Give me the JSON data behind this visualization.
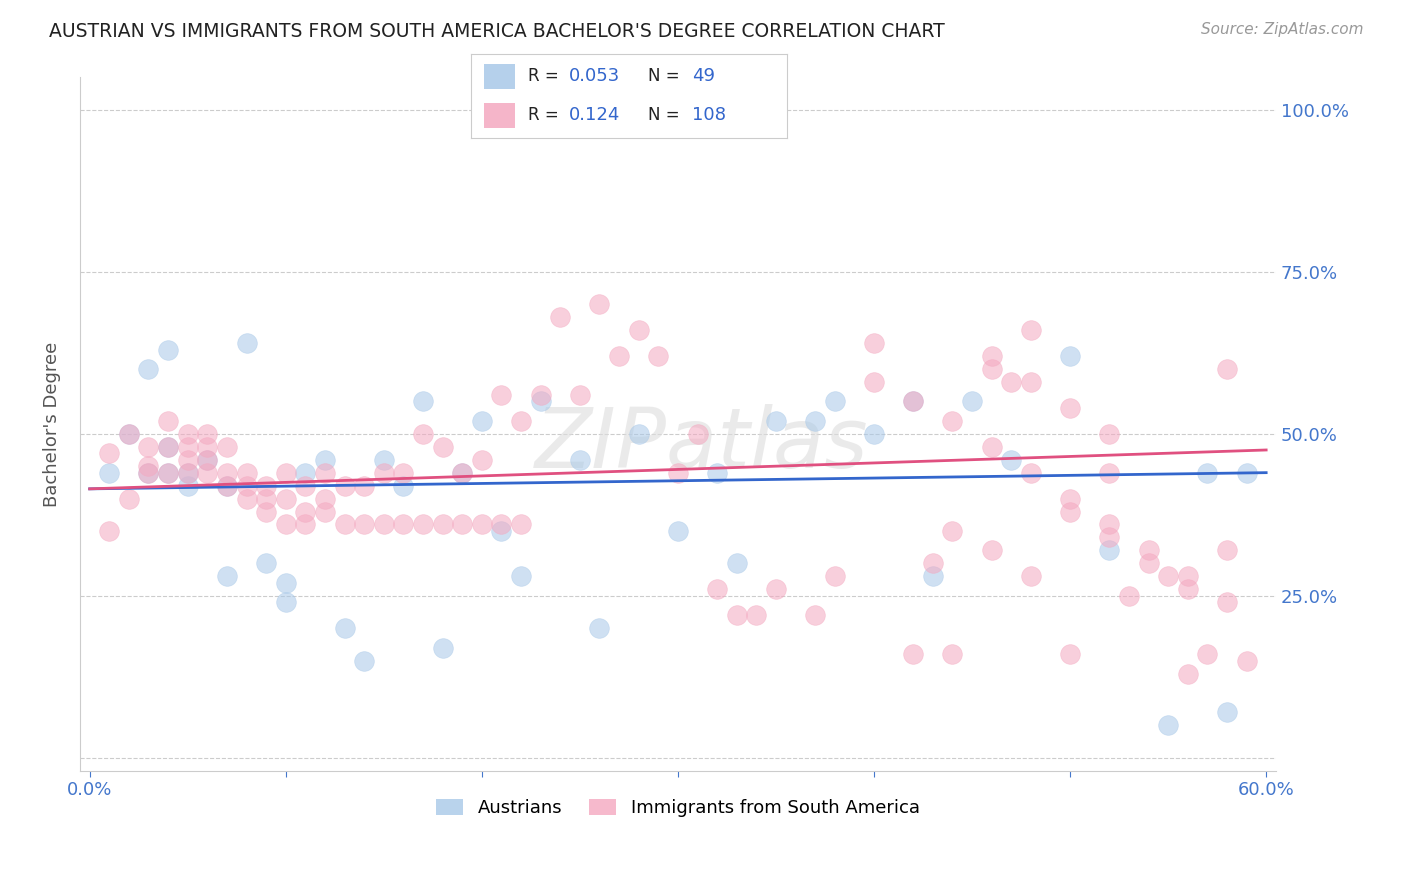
{
  "title": "AUSTRIAN VS IMMIGRANTS FROM SOUTH AMERICA BACHELOR'S DEGREE CORRELATION CHART",
  "source": "Source: ZipAtlas.com",
  "ylabel": "Bachelor's Degree",
  "xlim": [
    0.0,
    0.6
  ],
  "ylim": [
    0.0,
    1.0
  ],
  "color_blue": "#a8c8e8",
  "color_pink": "#f4a8c0",
  "line_blue": "#3366cc",
  "line_pink": "#e05080",
  "legend_label_blue": "Austrians",
  "legend_label_pink": "Immigrants from South America",
  "watermark": "ZIPatlas",
  "background_color": "#ffffff",
  "grid_color": "#cccccc",
  "blue_x": [
    0.01,
    0.02,
    0.03,
    0.03,
    0.04,
    0.04,
    0.04,
    0.05,
    0.05,
    0.06,
    0.07,
    0.07,
    0.08,
    0.09,
    0.1,
    0.1,
    0.11,
    0.12,
    0.13,
    0.14,
    0.15,
    0.16,
    0.17,
    0.18,
    0.19,
    0.2,
    0.21,
    0.22,
    0.23,
    0.25,
    0.26,
    0.28,
    0.3,
    0.32,
    0.33,
    0.35,
    0.37,
    0.38,
    0.4,
    0.42,
    0.43,
    0.45,
    0.47,
    0.5,
    0.52,
    0.55,
    0.57,
    0.58,
    0.59
  ],
  "blue_y": [
    0.44,
    0.5,
    0.44,
    0.6,
    0.44,
    0.48,
    0.63,
    0.44,
    0.42,
    0.46,
    0.42,
    0.28,
    0.64,
    0.3,
    0.24,
    0.27,
    0.44,
    0.46,
    0.2,
    0.15,
    0.46,
    0.42,
    0.55,
    0.17,
    0.44,
    0.52,
    0.35,
    0.28,
    0.55,
    0.46,
    0.2,
    0.5,
    0.35,
    0.44,
    0.3,
    0.52,
    0.52,
    0.55,
    0.5,
    0.55,
    0.28,
    0.55,
    0.46,
    0.62,
    0.32,
    0.05,
    0.44,
    0.07,
    0.44
  ],
  "pink_x": [
    0.01,
    0.01,
    0.02,
    0.02,
    0.03,
    0.03,
    0.03,
    0.04,
    0.04,
    0.04,
    0.05,
    0.05,
    0.05,
    0.05,
    0.06,
    0.06,
    0.06,
    0.06,
    0.07,
    0.07,
    0.07,
    0.08,
    0.08,
    0.08,
    0.09,
    0.09,
    0.09,
    0.1,
    0.1,
    0.1,
    0.11,
    0.11,
    0.11,
    0.12,
    0.12,
    0.12,
    0.13,
    0.13,
    0.14,
    0.14,
    0.15,
    0.15,
    0.16,
    0.16,
    0.17,
    0.17,
    0.18,
    0.18,
    0.19,
    0.19,
    0.2,
    0.2,
    0.21,
    0.21,
    0.22,
    0.22,
    0.23,
    0.24,
    0.25,
    0.26,
    0.27,
    0.28,
    0.29,
    0.3,
    0.31,
    0.32,
    0.33,
    0.34,
    0.35,
    0.37,
    0.38,
    0.4,
    0.42,
    0.43,
    0.44,
    0.46,
    0.47,
    0.48,
    0.5,
    0.52,
    0.53,
    0.55,
    0.56,
    0.57,
    0.58,
    0.59,
    0.44,
    0.46,
    0.48,
    0.5,
    0.52,
    0.54,
    0.56,
    0.58,
    0.4,
    0.42,
    0.44,
    0.46,
    0.48,
    0.5,
    0.52,
    0.54,
    0.56,
    0.58,
    0.46,
    0.48,
    0.5,
    0.52
  ],
  "pink_y": [
    0.35,
    0.47,
    0.5,
    0.4,
    0.45,
    0.48,
    0.44,
    0.44,
    0.48,
    0.52,
    0.44,
    0.46,
    0.48,
    0.5,
    0.44,
    0.46,
    0.48,
    0.5,
    0.42,
    0.44,
    0.48,
    0.4,
    0.42,
    0.44,
    0.38,
    0.4,
    0.42,
    0.36,
    0.4,
    0.44,
    0.36,
    0.38,
    0.42,
    0.38,
    0.4,
    0.44,
    0.36,
    0.42,
    0.36,
    0.42,
    0.36,
    0.44,
    0.36,
    0.44,
    0.36,
    0.5,
    0.36,
    0.48,
    0.36,
    0.44,
    0.36,
    0.46,
    0.36,
    0.56,
    0.36,
    0.52,
    0.56,
    0.68,
    0.56,
    0.7,
    0.62,
    0.66,
    0.62,
    0.44,
    0.5,
    0.26,
    0.22,
    0.22,
    0.26,
    0.22,
    0.28,
    0.64,
    0.16,
    0.3,
    0.16,
    0.6,
    0.58,
    0.66,
    0.16,
    0.44,
    0.25,
    0.28,
    0.13,
    0.16,
    0.6,
    0.15,
    0.35,
    0.32,
    0.28,
    0.38,
    0.34,
    0.3,
    0.26,
    0.32,
    0.58,
    0.55,
    0.52,
    0.48,
    0.44,
    0.4,
    0.36,
    0.32,
    0.28,
    0.24,
    0.62,
    0.58,
    0.54,
    0.5
  ]
}
